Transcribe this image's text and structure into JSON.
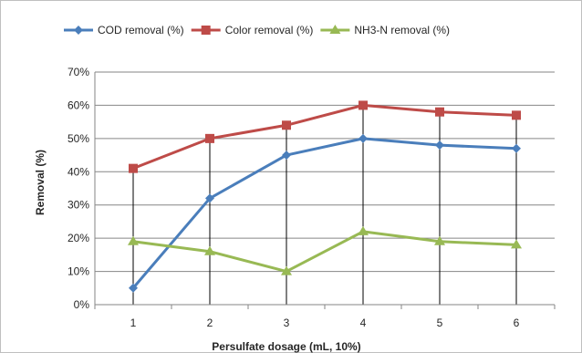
{
  "chart_data": {
    "type": "line",
    "title": "",
    "xlabel": "Persulfate dosage (mL, 10%)",
    "ylabel": "Removal (%)",
    "x": [
      1,
      2,
      3,
      4,
      5,
      6
    ],
    "x_tick_labels": [
      "1",
      "2",
      "3",
      "4",
      "5",
      "6"
    ],
    "ylim": [
      0,
      70
    ],
    "y_ticks": [
      0,
      10,
      20,
      30,
      40,
      50,
      60,
      70
    ],
    "y_tick_labels": [
      "0%",
      "10%",
      "20%",
      "30%",
      "40%",
      "50%",
      "60%",
      "70%"
    ],
    "grid": "horizontal",
    "drop_lines": true,
    "legend_position": "top",
    "series": [
      {
        "name": "COD removal (%)",
        "values": [
          5,
          32,
          45,
          50,
          48,
          47
        ],
        "color": "#4a7ebb",
        "marker": "diamond"
      },
      {
        "name": "Color removal (%)",
        "values": [
          41,
          50,
          54,
          60,
          58,
          57
        ],
        "color": "#be4b48",
        "marker": "square"
      },
      {
        "name": "NH3-N removal (%)",
        "values": [
          19,
          16,
          10,
          22,
          19,
          18
        ],
        "color": "#98b954",
        "marker": "triangle"
      }
    ]
  }
}
